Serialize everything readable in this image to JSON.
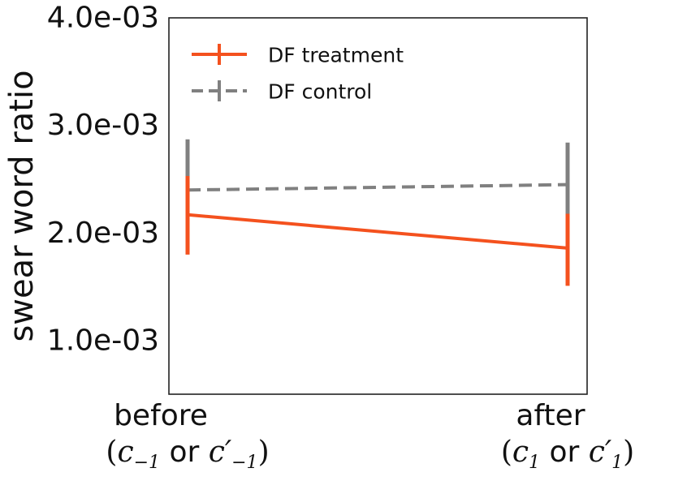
{
  "chart_data": {
    "type": "line",
    "title": "",
    "xlabel": "",
    "ylabel": "swear word ratio",
    "ylim": [
      0.0005,
      0.004
    ],
    "yticks": [
      0.001,
      0.002,
      0.003,
      0.004
    ],
    "ytick_labels": [
      "1.0e-03",
      "2.0e-03",
      "3.0e-03",
      "4.0e-03"
    ],
    "categories": [
      "before",
      "after"
    ],
    "category_sublabels": [
      {
        "open": "(",
        "var": "c",
        "sub": "−1",
        "or": "or",
        "var2": "c′",
        "sub2": "−1",
        "close": ")"
      },
      {
        "open": "(",
        "var": "c",
        "sub": "1",
        "or": "or",
        "var2": "c′",
        "sub2": "1",
        "close": ")"
      }
    ],
    "legend_position": "top-left",
    "grid": false,
    "series": [
      {
        "name": "DF treatment",
        "color": "#f4511e",
        "style": "solid",
        "values": [
          0.00217,
          0.00186
        ],
        "err_low": [
          0.0018,
          0.00151
        ],
        "err_high": [
          0.00253,
          0.00218
        ]
      },
      {
        "name": "DF control",
        "color": "#808080",
        "style": "dashed",
        "values": [
          0.0024,
          0.00245
        ],
        "err_low": [
          0.00191,
          0.00206
        ],
        "err_high": [
          0.00287,
          0.00284
        ]
      }
    ]
  }
}
